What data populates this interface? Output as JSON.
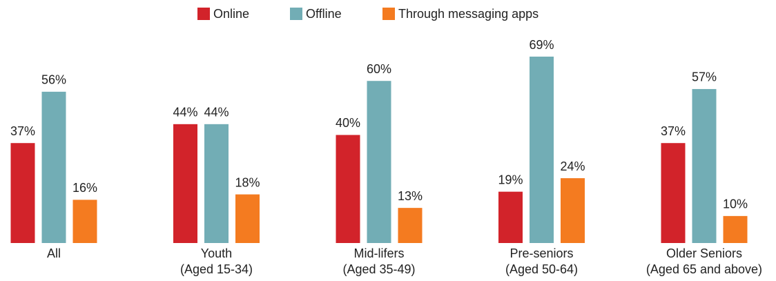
{
  "chart_data": {
    "type": "bar",
    "categories": [
      "All",
      "Youth\n(Aged 15-34)",
      "Mid-lifers\n(Aged 35-49)",
      "Pre-seniors\n(Aged 50-64)",
      "Older Seniors\n(Aged 65 and above)"
    ],
    "series": [
      {
        "name": "Online",
        "color": "#d2232a",
        "values": [
          37,
          44,
          40,
          19,
          37
        ],
        "value_labels": [
          "37%",
          "44%",
          "40%",
          "19%",
          "37%"
        ]
      },
      {
        "name": "Offline",
        "color": "#72adb5",
        "values": [
          56,
          44,
          60,
          69,
          57
        ],
        "value_labels": [
          "56%",
          "44%",
          "60%",
          "69%",
          "57%"
        ]
      },
      {
        "name": "Through messaging apps",
        "color": "#f47b20",
        "values": [
          16,
          18,
          13,
          24,
          10
        ],
        "value_labels": [
          "16%",
          "18%",
          "13%",
          "24%",
          "10%"
        ]
      }
    ],
    "legend": "top"
  }
}
